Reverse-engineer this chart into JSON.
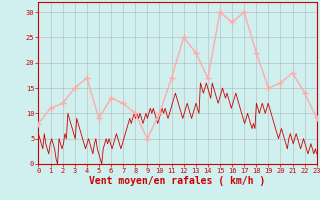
{
  "xlabel": "Vent moyen/en rafales ( km/h )",
  "bg_color": "#cff0ee",
  "grid_color": "#aaaaaa",
  "mean_color": "#ffaaaa",
  "gust_color": "#cc0000",
  "text_color": "#cc0000",
  "spine_color": "#cc0000",
  "ylim": [
    0,
    32
  ],
  "yticks": [
    0,
    5,
    10,
    15,
    20,
    25,
    30
  ],
  "xlim": [
    0,
    23
  ],
  "xticks": [
    0,
    1,
    2,
    3,
    4,
    5,
    6,
    7,
    8,
    9,
    10,
    11,
    12,
    13,
    14,
    15,
    16,
    17,
    18,
    19,
    20,
    21,
    22,
    23
  ],
  "mean_x": [
    0,
    1,
    2,
    3,
    4,
    5,
    6,
    7,
    8,
    9,
    10,
    11,
    12,
    13,
    14,
    15,
    16,
    17,
    18,
    19,
    20,
    21,
    22,
    23
  ],
  "mean_y": [
    8,
    11,
    12,
    15,
    17,
    9,
    13,
    12,
    10,
    5,
    10,
    17,
    25,
    22,
    17,
    30,
    28,
    30,
    22,
    15,
    16,
    18,
    14,
    9
  ],
  "gust_y": [
    6,
    5,
    4,
    3,
    6,
    4,
    3,
    2,
    4,
    5,
    4,
    3,
    1,
    0,
    5,
    4,
    3,
    4,
    6,
    5,
    10,
    9,
    8,
    7,
    6,
    5,
    9,
    8,
    7,
    6,
    5,
    4,
    3,
    4,
    5,
    4,
    3,
    2,
    4,
    5,
    3,
    2,
    1,
    0,
    3,
    4,
    5,
    4,
    5,
    4,
    3,
    4,
    5,
    6,
    5,
    4,
    3,
    4,
    5,
    6,
    7,
    8,
    9,
    8,
    9,
    10,
    9,
    10,
    9,
    10,
    9,
    8,
    9,
    10,
    9,
    10,
    11,
    10,
    11,
    10,
    9,
    8,
    9,
    10,
    11,
    10,
    11,
    10,
    9,
    10,
    11,
    12,
    13,
    14,
    13,
    12,
    11,
    10,
    9,
    10,
    11,
    12,
    11,
    10,
    9,
    10,
    11,
    12,
    11,
    10,
    16,
    15,
    14,
    15,
    16,
    15,
    14,
    13,
    16,
    15,
    14,
    13,
    12,
    13,
    14,
    15,
    14,
    13,
    14,
    13,
    12,
    11,
    12,
    13,
    14,
    13,
    12,
    11,
    10,
    9,
    8,
    9,
    10,
    9,
    8,
    7,
    8,
    7,
    12,
    11,
    10,
    11,
    12,
    11,
    10,
    11,
    12,
    11,
    10,
    9,
    8,
    7,
    6,
    5,
    6,
    7,
    6,
    5,
    4,
    3,
    5,
    6,
    5,
    4,
    5,
    6,
    5,
    4,
    3,
    4,
    5,
    4,
    3,
    2,
    3,
    4,
    3,
    2,
    3,
    2
  ]
}
